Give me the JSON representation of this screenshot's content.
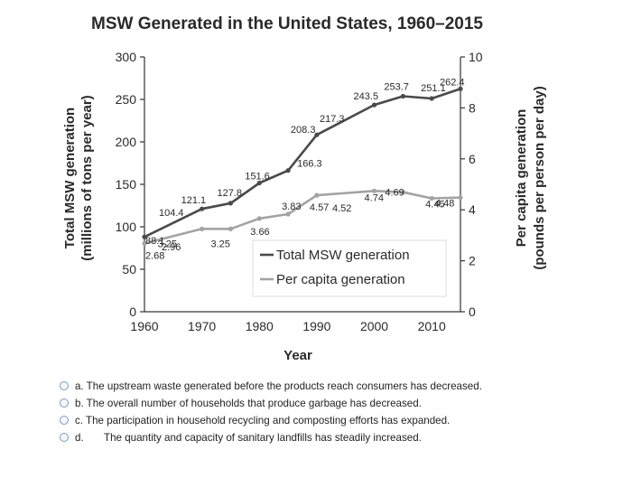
{
  "chart_data": {
    "type": "line",
    "title": "MSW Generated in the United States, 1960–2015",
    "xlabel": "Year",
    "ylabel_left": [
      "Total MSW generation",
      "(millions of tons per year)"
    ],
    "ylabel_right": [
      "Per capita generation",
      "(pounds per person per day)"
    ],
    "x_ticks": [
      "1960",
      "1970",
      "1980",
      "1990",
      "2000",
      "2010"
    ],
    "y_left_ticks": [
      "0",
      "50",
      "100",
      "150",
      "200",
      "250",
      "300"
    ],
    "y_right_ticks": [
      "0",
      "2",
      "4",
      "6",
      "8",
      "10"
    ],
    "xlim": [
      1960,
      2015
    ],
    "ylim_left": [
      0,
      300
    ],
    "ylim_right": [
      0,
      10
    ],
    "legend_position": "center-right",
    "series": [
      {
        "name": "Total MSW generation",
        "axis": "left",
        "color": "#4a4a4a",
        "x": [
          1960,
          1970,
          1975,
          1980,
          1985,
          1990,
          2000,
          2005,
          2010,
          2015
        ],
        "y": [
          88.1,
          121.1,
          127.8,
          151.6,
          166.3,
          208.3,
          243.5,
          253.7,
          251.1,
          262.4
        ],
        "labels": [
          "88.1",
          "121.1",
          "127.8",
          "151.6",
          "166.3",
          "208.3",
          "243.5",
          "253.7",
          "251.1",
          "262.4"
        ],
        "extra_labels": [
          "104.4",
          "217.3"
        ]
      },
      {
        "name": "Per capita generation",
        "axis": "right",
        "color": "#a3a3a3",
        "x": [
          1960,
          1970,
          1975,
          1980,
          1985,
          1990,
          2000,
          2005,
          2010,
          2015
        ],
        "y": [
          2.68,
          3.25,
          3.25,
          3.66,
          3.83,
          4.57,
          4.74,
          4.69,
          4.45,
          4.48
        ],
        "labels": [
          "2.68",
          "3.25",
          "3.25",
          "3.66",
          "3.83",
          "4.57",
          "4.74",
          "4.69",
          "4.45",
          "4.48"
        ],
        "extra_labels": [
          "2.96",
          "4.52"
        ]
      }
    ]
  },
  "question": {
    "options": [
      {
        "text": "a. The upstream waste generated before the products reach consumers has decreased."
      },
      {
        "text": "b. The overall number of households that produce garbage has decreased."
      },
      {
        "text": "c. The participation in household recycling and composting efforts has expanded."
      },
      {
        "letter": "d.",
        "text": "The quantity and capacity of sanitary landfills has steadily increased."
      }
    ]
  }
}
